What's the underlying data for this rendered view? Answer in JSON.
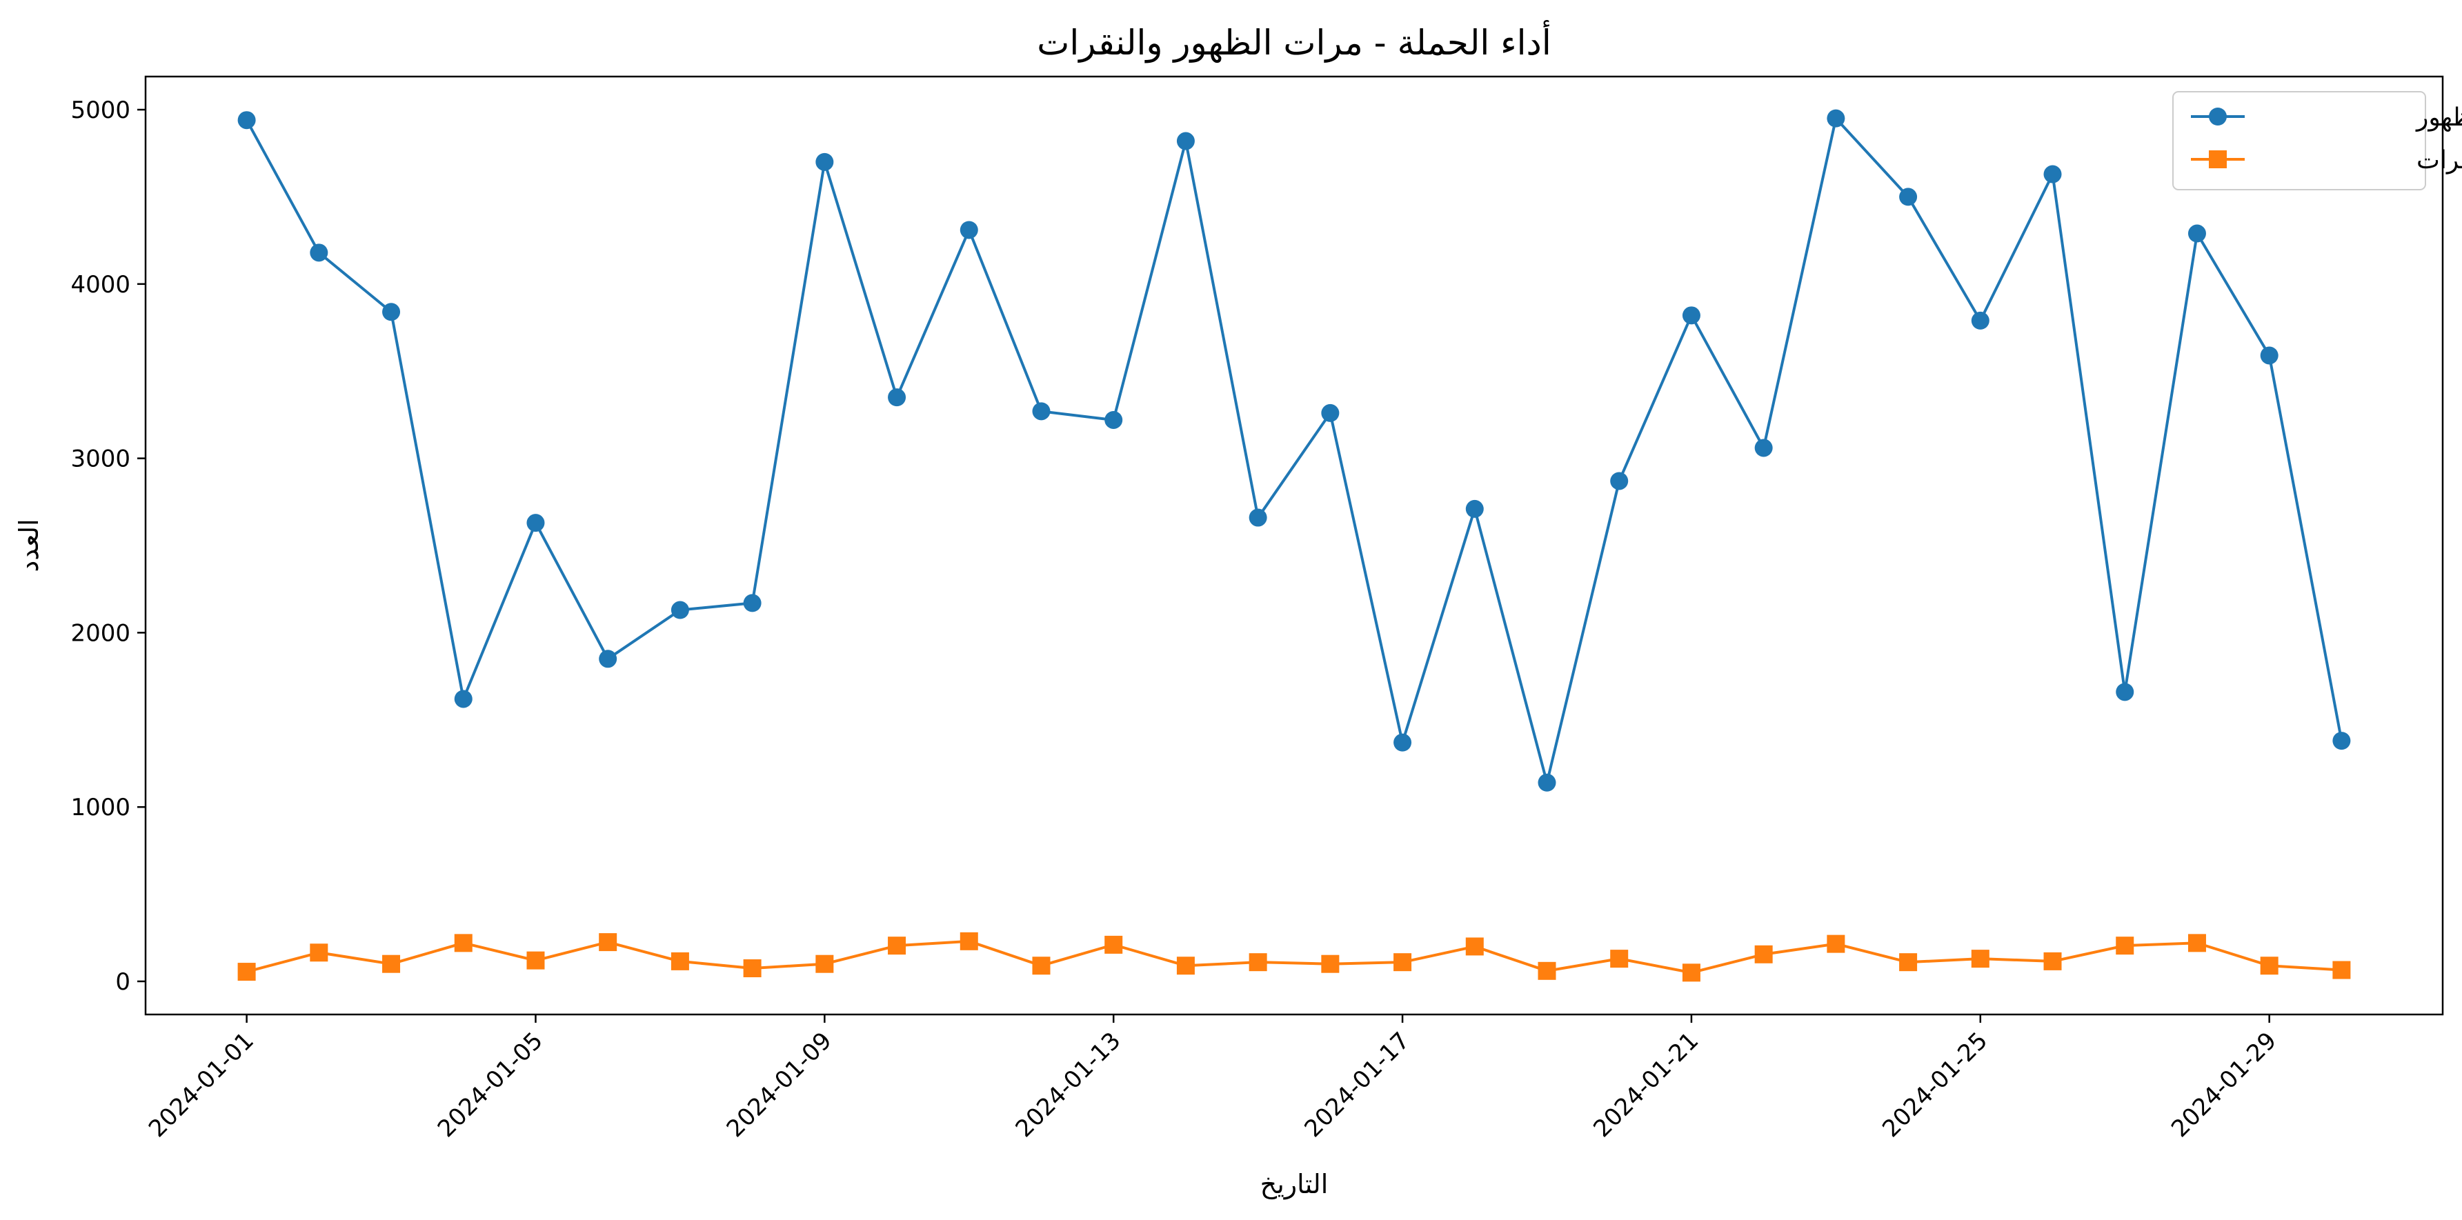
{
  "chart_data": {
    "type": "line",
    "title": "أداء الحملة - مرات الظهور والنقرات",
    "xlabel": "التاريخ",
    "ylabel": "العدد",
    "x": [
      "2024-01-01",
      "2024-01-02",
      "2024-01-03",
      "2024-01-04",
      "2024-01-05",
      "2024-01-06",
      "2024-01-07",
      "2024-01-08",
      "2024-01-09",
      "2024-01-10",
      "2024-01-11",
      "2024-01-12",
      "2024-01-13",
      "2024-01-14",
      "2024-01-15",
      "2024-01-16",
      "2024-01-17",
      "2024-01-18",
      "2024-01-19",
      "2024-01-20",
      "2024-01-21",
      "2024-01-22",
      "2024-01-23",
      "2024-01-24",
      "2024-01-25",
      "2024-01-26",
      "2024-01-27",
      "2024-01-28",
      "2024-01-29",
      "2024-01-30"
    ],
    "x_ticks": [
      "2024-01-01",
      "2024-01-05",
      "2024-01-09",
      "2024-01-13",
      "2024-01-17",
      "2024-01-21",
      "2024-01-25",
      "2024-01-29"
    ],
    "y_ticks": [
      0,
      1000,
      2000,
      3000,
      4000,
      5000
    ],
    "ylim": [
      -190,
      5190
    ],
    "xlim": [
      "2023-12-30T14:24",
      "2024-01-31T09:36"
    ],
    "grid": false,
    "legend_position": "top-right",
    "series": [
      {
        "name": "مرات الظهور",
        "color": "#1f77b4",
        "marker": "circle",
        "values": [
          4940,
          4180,
          3840,
          1620,
          2630,
          1850,
          2130,
          2170,
          4700,
          3350,
          4310,
          3270,
          3220,
          4820,
          2660,
          3260,
          1370,
          2710,
          1140,
          2870,
          3820,
          3060,
          4950,
          4500,
          3790,
          4630,
          1660,
          4290,
          3590,
          1380
        ]
      },
      {
        "name": "النقرات",
        "color": "#ff7f0e",
        "marker": "square",
        "values": [
          55,
          165,
          100,
          220,
          120,
          225,
          115,
          75,
          100,
          205,
          230,
          90,
          210,
          90,
          110,
          100,
          110,
          200,
          60,
          130,
          50,
          155,
          215,
          110,
          130,
          115,
          205,
          220,
          90,
          65
        ]
      }
    ]
  }
}
